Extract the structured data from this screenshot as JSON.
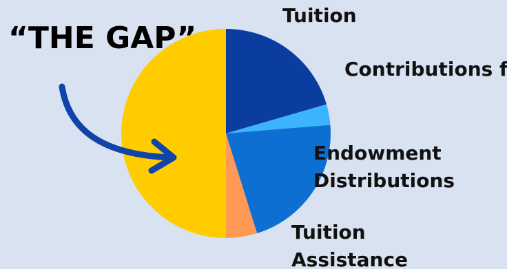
{
  "chart_data": {
    "type": "pie",
    "title": "",
    "slices": [
      {
        "label": "Tuition",
        "value": 20.5,
        "color": "#0a3d9f"
      },
      {
        "label": "Contributions from parishes",
        "value": 3.2,
        "color": "#3bb3ff"
      },
      {
        "label": "Endowment Distributions",
        "value": 21.5,
        "color": "#0c6fd1"
      },
      {
        "label": "Tuition Assistance",
        "value": 4.8,
        "color": "#ff9955"
      },
      {
        "label": "“THE GAP”",
        "value": 50.0,
        "color": "#ffcc00"
      }
    ],
    "start_angle_deg": 0,
    "direction": "clockwise",
    "callout": {
      "text": "“THE GAP”",
      "color": "#1144a8",
      "arrow": "arrow-curve-icon"
    }
  }
}
